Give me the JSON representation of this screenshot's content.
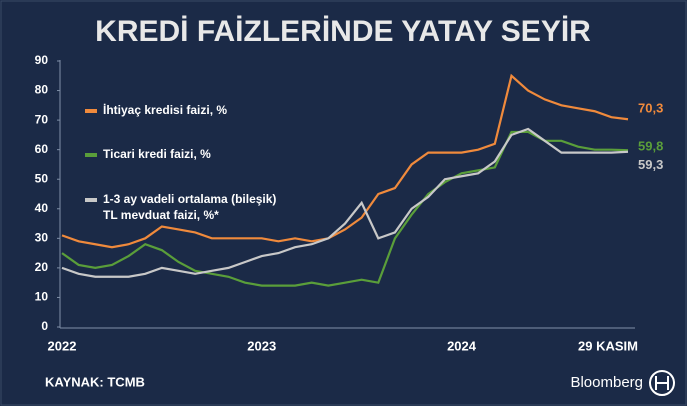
{
  "chart_data": {
    "type": "line",
    "title": "KREDİ FAİZLERİNDE YATAY SEYİR",
    "source": "KAYNAK: TCMB",
    "brand": "Bloomberg",
    "categories": [
      "2022",
      null,
      null,
      null,
      null,
      null,
      null,
      null,
      null,
      null,
      null,
      null,
      "2023",
      null,
      null,
      null,
      null,
      null,
      null,
      null,
      null,
      null,
      null,
      null,
      "2024",
      null,
      null,
      null,
      null,
      null,
      null,
      null,
      null,
      null,
      "29 KASIM"
    ],
    "series": [
      {
        "name": "İhtiyaç kredisi faizi, %",
        "color": "#f08a3c",
        "values": [
          31,
          29,
          28,
          27,
          28,
          30,
          34,
          33,
          32,
          30,
          30,
          30,
          30,
          29,
          30,
          29,
          30,
          33,
          37,
          45,
          47,
          55,
          59,
          59,
          59,
          60,
          62,
          85,
          80,
          77,
          75,
          74,
          73,
          71,
          70.3
        ],
        "value_labels": [
          null,
          null,
          null,
          null,
          null,
          null,
          null,
          null,
          null,
          null,
          null,
          null,
          null,
          null,
          null,
          null,
          null,
          null,
          null,
          null,
          null,
          null,
          null,
          null,
          null,
          null,
          null,
          null,
          null,
          null,
          null,
          null,
          null,
          null,
          "70,3"
        ]
      },
      {
        "name": "Ticari kredi faizi, %",
        "color": "#5a9e3a",
        "values": [
          25,
          21,
          20,
          21,
          24,
          28,
          26,
          22,
          19,
          18,
          17,
          15,
          14,
          14,
          14,
          15,
          14,
          15,
          16,
          15,
          30,
          38,
          45,
          49,
          52,
          53,
          54,
          66,
          66,
          63,
          63,
          61,
          60,
          60,
          59.8
        ],
        "value_labels": [
          null,
          null,
          null,
          null,
          null,
          null,
          null,
          null,
          null,
          null,
          null,
          null,
          null,
          null,
          null,
          null,
          null,
          null,
          null,
          null,
          null,
          null,
          null,
          null,
          null,
          null,
          null,
          null,
          null,
          null,
          null,
          null,
          null,
          null,
          "59,8"
        ]
      },
      {
        "name": "1-3 ay vadeli ortalama (bileşik)\nTL mevduat faizi, %*",
        "color": "#c8c8c8",
        "values": [
          20,
          18,
          17,
          17,
          17,
          18,
          20,
          19,
          18,
          19,
          20,
          22,
          24,
          25,
          27,
          28,
          30,
          35,
          42,
          30,
          32,
          40,
          44,
          50,
          51,
          52,
          56,
          65,
          67,
          63,
          59,
          59,
          59,
          59,
          59.3
        ],
        "value_labels": [
          null,
          null,
          null,
          null,
          null,
          null,
          null,
          null,
          null,
          null,
          null,
          null,
          null,
          null,
          null,
          null,
          null,
          null,
          null,
          null,
          null,
          null,
          null,
          null,
          null,
          null,
          null,
          null,
          null,
          null,
          null,
          null,
          null,
          null,
          "59,3"
        ]
      }
    ],
    "ylim": [
      0,
      90
    ],
    "yticks": [
      0,
      10,
      20,
      30,
      40,
      50,
      60,
      70,
      80,
      90
    ],
    "grid": false
  }
}
